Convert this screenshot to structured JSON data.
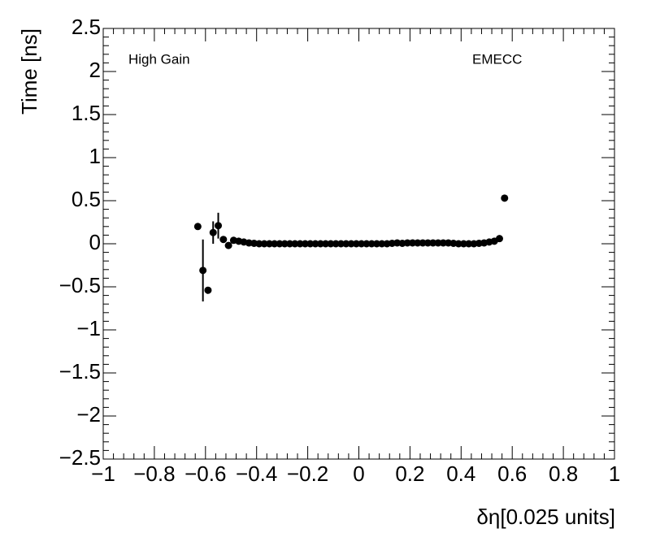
{
  "chart_data": {
    "type": "scatter",
    "xlabel": "δη[0.025 units]",
    "ylabel": "Time [ns]",
    "annotations": [
      "High Gain",
      "EMECC"
    ],
    "color": "#000000",
    "x": [
      -0.63,
      -0.61,
      -0.59,
      -0.57,
      -0.55,
      -0.53,
      -0.51,
      -0.49,
      -0.47,
      -0.45,
      -0.43,
      -0.41,
      -0.39,
      -0.37,
      -0.35,
      -0.33,
      -0.31,
      -0.29,
      -0.27,
      -0.25,
      -0.23,
      -0.21,
      -0.19,
      -0.17,
      -0.15,
      -0.13,
      -0.11,
      -0.09,
      -0.07,
      -0.05,
      -0.03,
      -0.01,
      0.01,
      0.03,
      0.05,
      0.07,
      0.09,
      0.11,
      0.13,
      0.15,
      0.17,
      0.19,
      0.21,
      0.23,
      0.25,
      0.27,
      0.29,
      0.31,
      0.33,
      0.35,
      0.37,
      0.39,
      0.41,
      0.43,
      0.45,
      0.47,
      0.49,
      0.51,
      0.53,
      0.55,
      0.57
    ],
    "values": [
      0.2,
      -0.31,
      -0.54,
      0.13,
      0.21,
      0.05,
      -0.02,
      0.04,
      0.03,
      0.02,
      0.01,
      0.005,
      0,
      0,
      0,
      0,
      0,
      0,
      0,
      0,
      0,
      0,
      0,
      0,
      0,
      0,
      0,
      0,
      0,
      0,
      0,
      0,
      0,
      0,
      0,
      0,
      0,
      0,
      0.005,
      0.01,
      0.005,
      0.01,
      0.01,
      0.01,
      0.01,
      0.01,
      0.01,
      0.01,
      0.01,
      0.01,
      0.005,
      0,
      0,
      0,
      0,
      0.005,
      0.01,
      0.02,
      0.03,
      0.06,
      0.53
    ],
    "errors": [
      0,
      0.36,
      0,
      0.13,
      0.15,
      0,
      0,
      0,
      0,
      0,
      0,
      0,
      0,
      0,
      0,
      0,
      0,
      0,
      0,
      0,
      0,
      0,
      0,
      0,
      0,
      0,
      0,
      0,
      0,
      0,
      0,
      0,
      0,
      0,
      0,
      0,
      0,
      0,
      0,
      0,
      0,
      0,
      0,
      0,
      0,
      0,
      0,
      0,
      0,
      0,
      0,
      0,
      0,
      0,
      0,
      0,
      0,
      0,
      0,
      0,
      0
    ],
    "xlim": [
      -1,
      1
    ],
    "xticks": [
      {
        "value": -1,
        "label": "−1"
      },
      {
        "value": -0.8,
        "label": "−0.8"
      },
      {
        "value": -0.6,
        "label": "−0.6"
      },
      {
        "value": -0.4,
        "label": "−0.4"
      },
      {
        "value": -0.2,
        "label": "−0.2"
      },
      0,
      0.2,
      0.4,
      0.6,
      0.8,
      1
    ],
    "ylim": [
      -2.5,
      2.5
    ],
    "yticks": [
      {
        "value": -2.5,
        "label": "−2.5"
      },
      {
        "value": -2,
        "label": "−2"
      },
      {
        "value": -1.5,
        "label": "−1.5"
      },
      {
        "value": -1,
        "label": "−1"
      },
      {
        "value": -0.5,
        "label": "−0.5"
      },
      0,
      0.5,
      1,
      1.5,
      2,
      2.5
    ]
  }
}
